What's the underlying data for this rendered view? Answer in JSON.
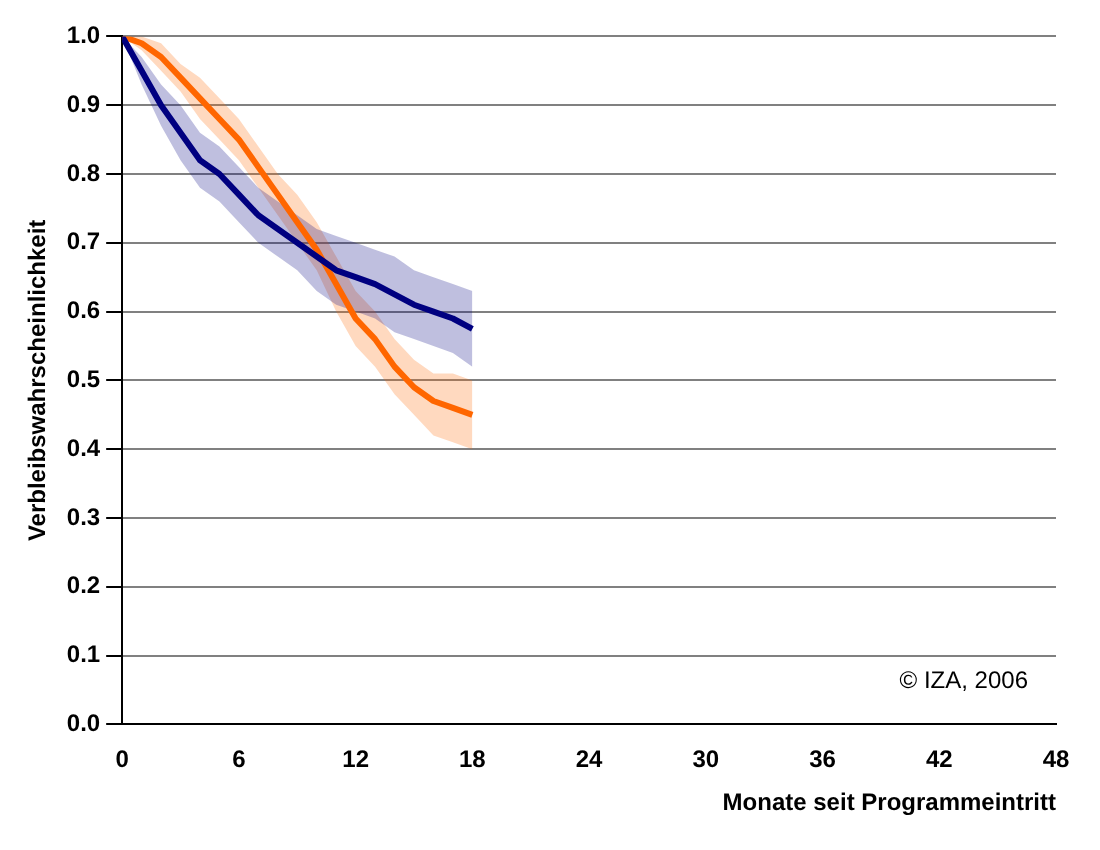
{
  "chart_data": {
    "type": "line",
    "xlabel": "Monate seit Programmeintritt",
    "ylabel": "Verbleibswahrscheinlichkeit",
    "annotations": [
      "© IZA, 2006"
    ],
    "x": [
      0,
      1,
      2,
      3,
      4,
      5,
      6,
      7,
      8,
      9,
      10,
      11,
      12,
      13,
      14,
      15,
      16,
      17,
      18
    ],
    "xlim": [
      0,
      48
    ],
    "xticks": [
      0,
      6,
      12,
      18,
      24,
      30,
      36,
      42,
      48
    ],
    "ylim": [
      0,
      1
    ],
    "yticks": [
      {
        "value": 0,
        "label": "0.0"
      },
      0.1,
      0.2,
      0.3,
      0.4,
      0.5,
      0.6,
      0.7,
      0.8,
      0.9,
      {
        "value": 1,
        "label": "1.0"
      }
    ],
    "grid": "y",
    "legend": false,
    "marker": "none",
    "line_style": "solid",
    "series": [
      {
        "color": "#000080",
        "values": [
          1.0,
          0.95,
          0.9,
          0.86,
          0.82,
          0.8,
          0.77,
          0.74,
          0.72,
          0.7,
          0.68,
          0.66,
          0.65,
          0.64,
          0.625,
          0.61,
          0.6,
          0.59,
          0.575
        ],
        "lower": [
          1.0,
          0.93,
          0.87,
          0.82,
          0.78,
          0.76,
          0.73,
          0.7,
          0.68,
          0.66,
          0.63,
          0.61,
          0.6,
          0.59,
          0.57,
          0.56,
          0.55,
          0.54,
          0.52
        ],
        "upper": [
          1.0,
          0.97,
          0.93,
          0.9,
          0.86,
          0.84,
          0.81,
          0.78,
          0.76,
          0.74,
          0.72,
          0.71,
          0.7,
          0.69,
          0.68,
          0.66,
          0.65,
          0.64,
          0.63
        ]
      },
      {
        "color": "#ff6600",
        "values": [
          1.0,
          0.99,
          0.97,
          0.94,
          0.91,
          0.88,
          0.85,
          0.81,
          0.77,
          0.73,
          0.69,
          0.64,
          0.59,
          0.56,
          0.52,
          0.49,
          0.47,
          0.46,
          0.45
        ],
        "lower": [
          1.0,
          0.98,
          0.95,
          0.92,
          0.88,
          0.85,
          0.82,
          0.78,
          0.74,
          0.7,
          0.66,
          0.6,
          0.55,
          0.52,
          0.48,
          0.45,
          0.42,
          0.41,
          0.4
        ],
        "upper": [
          1.0,
          1.0,
          0.99,
          0.96,
          0.94,
          0.91,
          0.88,
          0.84,
          0.8,
          0.77,
          0.73,
          0.68,
          0.63,
          0.6,
          0.56,
          0.53,
          0.51,
          0.51,
          0.5
        ]
      }
    ]
  }
}
